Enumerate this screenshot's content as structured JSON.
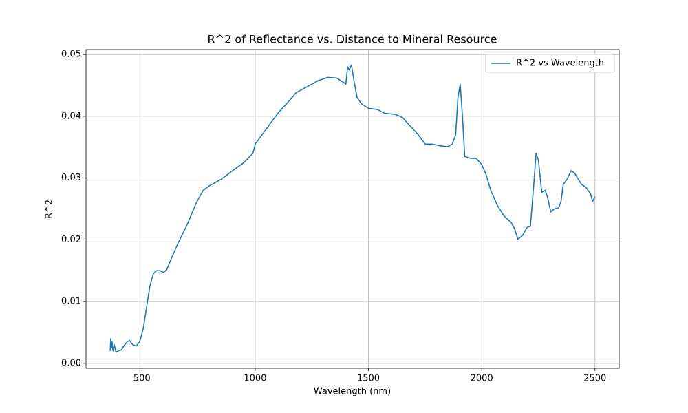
{
  "chart_data": {
    "type": "line",
    "title": "R^2 of Reflectance vs. Distance to Mineral Resource",
    "x_label": "Wavelength (nm)",
    "y_label": "R^2",
    "legend": "upper right",
    "grid": true,
    "xlim": [
      253,
      2607
    ],
    "ylim": [
      -0.0008,
      0.0508
    ],
    "xticks": [
      500,
      1000,
      1500,
      2000,
      2500
    ],
    "yticks": [
      {
        "value": 0,
        "label": "0.00"
      },
      {
        "value": 0.01,
        "label": "0.01"
      },
      {
        "value": 0.02,
        "label": "0.02"
      },
      {
        "value": 0.03,
        "label": "0.03"
      },
      {
        "value": 0.04,
        "label": "0.04"
      },
      {
        "value": 0.05,
        "label": "0.05"
      }
    ],
    "x": [
      360,
      362,
      365,
      368,
      372,
      378,
      385,
      395,
      410,
      420,
      435,
      445,
      460,
      475,
      490,
      505,
      520,
      535,
      550,
      565,
      580,
      595,
      610,
      630,
      660,
      700,
      740,
      770,
      800,
      850,
      900,
      950,
      990,
      1000,
      1050,
      1100,
      1150,
      1180,
      1230,
      1280,
      1320,
      1360,
      1390,
      1400,
      1408,
      1415,
      1425,
      1435,
      1450,
      1470,
      1500,
      1540,
      1570,
      1620,
      1650,
      1690,
      1720,
      1750,
      1780,
      1820,
      1850,
      1870,
      1885,
      1895,
      1905,
      1915,
      1925,
      1950,
      1975,
      2000,
      2020,
      2040,
      2070,
      2100,
      2130,
      2145,
      2160,
      2180,
      2200,
      2215,
      2230,
      2240,
      2250,
      2265,
      2280,
      2290,
      2305,
      2320,
      2340,
      2350,
      2360,
      2375,
      2395,
      2410,
      2440,
      2460,
      2480,
      2490,
      2500
    ],
    "series": [
      {
        "name": "R^2 vs Wavelength",
        "color": "#1f77b4",
        "values": [
          0.002,
          0.004,
          0.0025,
          0.0035,
          0.002,
          0.003,
          0.0018,
          0.002,
          0.0022,
          0.0028,
          0.0035,
          0.0037,
          0.003,
          0.0028,
          0.0035,
          0.0055,
          0.009,
          0.0125,
          0.0145,
          0.015,
          0.015,
          0.0147,
          0.0152,
          0.017,
          0.0195,
          0.0225,
          0.026,
          0.028,
          0.0288,
          0.0298,
          0.0312,
          0.0325,
          0.034,
          0.0355,
          0.038,
          0.0405,
          0.0425,
          0.0438,
          0.0448,
          0.0458,
          0.0463,
          0.0462,
          0.0455,
          0.0452,
          0.048,
          0.0475,
          0.0483,
          0.046,
          0.043,
          0.042,
          0.0413,
          0.0411,
          0.0405,
          0.0403,
          0.0398,
          0.0382,
          0.037,
          0.0355,
          0.0355,
          0.0352,
          0.0351,
          0.0355,
          0.037,
          0.043,
          0.0452,
          0.04,
          0.0335,
          0.0332,
          0.0332,
          0.0322,
          0.0305,
          0.028,
          0.0255,
          0.0238,
          0.0228,
          0.0218,
          0.0201,
          0.0207,
          0.022,
          0.0222,
          0.029,
          0.034,
          0.033,
          0.0277,
          0.028,
          0.027,
          0.0245,
          0.025,
          0.0252,
          0.0262,
          0.029,
          0.0297,
          0.0312,
          0.0308,
          0.029,
          0.0285,
          0.0275,
          0.0262,
          0.027
        ]
      }
    ]
  }
}
